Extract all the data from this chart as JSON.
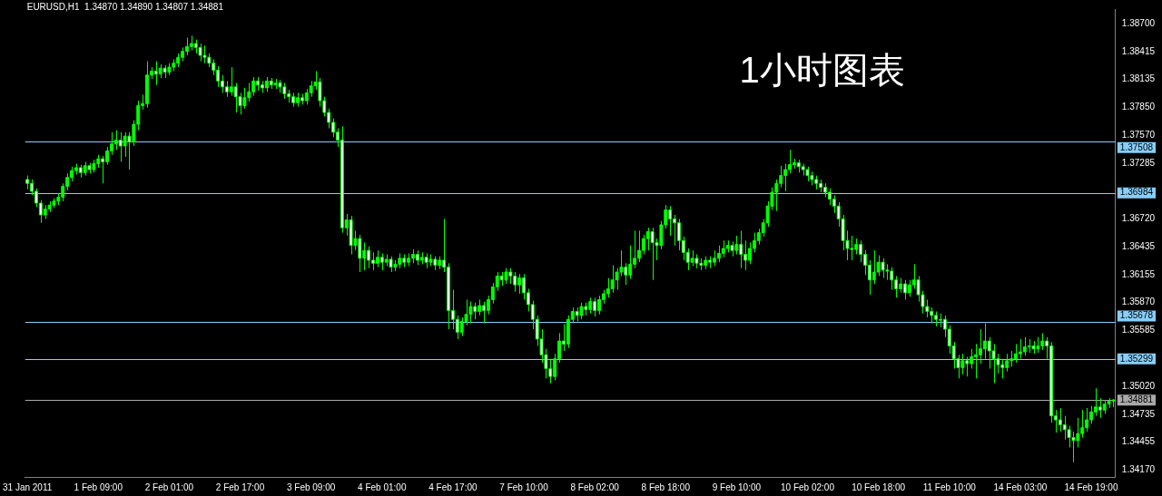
{
  "chart_data": {
    "type": "candlestick",
    "title": "EURUSD,H1  1.34870 1.34890 1.34807 1.34881",
    "annotations": [
      "1小时图表"
    ],
    "color": "#00ff00",
    "colors": [
      "#ffffff",
      "#ffffff",
      "#ffffff",
      "#ffffff",
      "#00ff00",
      "#00ff00",
      "#00ff00",
      "#00ff00",
      "#00ff00",
      "#00ff00",
      "#00ff00",
      "#00ff00",
      "#ffffff",
      "#00ff00",
      "#ffffff",
      "#00ff00",
      "#00ff00",
      "#ffffff",
      "#00ff00",
      "#00ff00",
      "#00ff00",
      "#ffffff",
      "#00ff00",
      "#ffffff",
      "#00ff00",
      "#00ff00",
      "#00ff00",
      "#00ff00",
      "#00ff00",
      "#ffffff",
      "#00ff00",
      "#ffffff",
      "#00ff00",
      "#00ff00",
      "#00ff00",
      "#00ff00",
      "#00ff00",
      "#00ff00",
      "#ffffff",
      "#ffffff",
      "#ffffff",
      "#ffffff",
      "#ffffff",
      "#ffffff",
      "#ffffff",
      "#ffffff",
      "#00ff00",
      "#ffffff",
      "#ffffff",
      "#00ff00",
      "#00ff00",
      "#00ff00",
      "#ffffff",
      "#ffffff",
      "#00ff00",
      "#ffffff",
      "#00ff00",
      "#ffffff",
      "#ffffff",
      "#ffffff",
      "#ffffff",
      "#00ff00",
      "#ffffff",
      "#00ff00",
      "#00ff00",
      "#00ff00",
      "#ffffff",
      "#ffffff",
      "#ffffff",
      "#ffffff",
      "#ffffff",
      "#ffffff",
      "#00ff00",
      "#ffffff",
      "#00ff00",
      "#ffffff",
      "#00ff00",
      "#ffffff",
      "#ffffff",
      "#00ff00",
      "#ffffff",
      "#00ff00",
      "#ffffff",
      "#00ff00",
      "#00ff00",
      "#ffffff",
      "#00ff00",
      "#00ff00",
      "#ffffff",
      "#00ff00",
      "#ffffff",
      "#00ff00",
      "#ffffff",
      "#00ff00",
      "#ffffff",
      "#ffffff",
      "#ffffff",
      "#ffffff",
      "#00ff00",
      "#00ff00",
      "#00ff00",
      "#ffffff",
      "#00ff00",
      "#ffffff",
      "#00ff00",
      "#00ff00",
      "#00ff00",
      "#ffffff",
      "#00ff00",
      "#ffffff",
      "#ffffff",
      "#00ff00",
      "#ffffff",
      "#ffffff",
      "#ffffff",
      "#ffffff",
      "#ffffff",
      "#ffffff",
      "#ffffff",
      "#00ff00",
      "#00ff00",
      "#ffffff",
      "#00ff00",
      "#00ff00",
      "#ffffff",
      "#00ff00",
      "#ffffff",
      "#00ff00",
      "#ffffff",
      "#00ff00",
      "#00ff00",
      "#00ff00",
      "#00ff00",
      "#00ff00",
      "#00ff00",
      "#ffffff",
      "#00ff00",
      "#00ff00",
      "#00ff00",
      "#00ff00",
      "#00ff00",
      "#ffffff",
      "#ffffff",
      "#00ff00",
      "#00ff00",
      "#ffffff",
      "#ffffff",
      "#ffffff",
      "#ffffff",
      "#ffffff",
      "#00ff00",
      "#ffffff",
      "#ffffff",
      "#00ff00",
      "#ffffff",
      "#00ff00",
      "#00ff00",
      "#00ff00",
      "#00ff00",
      "#ffffff",
      "#00ff00",
      "#ffffff",
      "#ffffff",
      "#00ff00",
      "#00ff00",
      "#00ff00",
      "#00ff00",
      "#00ff00",
      "#00ff00",
      "#00ff00",
      "#00ff00",
      "#00ff00",
      "#00ff00",
      "#00ff00",
      "#ffffff",
      "#ffffff",
      "#ffffff",
      "#ffffff",
      "#ffffff",
      "#ffffff",
      "#ffffff",
      "#ffffff",
      "#ffffff",
      "#ffffff",
      "#ffffff",
      "#ffffff",
      "#ffffff",
      "#00ff00",
      "#ffffff",
      "#ffffff",
      "#ffffff",
      "#00ff00",
      "#00ff00",
      "#ffffff",
      "#ffffff",
      "#ffffff",
      "#ffffff",
      "#00ff00",
      "#ffffff",
      "#00ff00",
      "#00ff00",
      "#ffffff",
      "#ffffff",
      "#ffffff",
      "#ffffff",
      "#ffffff",
      "#00ff00",
      "#ffffff",
      "#ffffff",
      "#ffffff",
      "#ffffff",
      "#00ff00",
      "#ffffff",
      "#00ff00",
      "#00ff00",
      "#00ff00",
      "#00ff00",
      "#ffffff",
      "#ffffff",
      "#ffffff",
      "#ffffff",
      "#00ff00",
      "#00ff00",
      "#00ff00",
      "#00ff00",
      "#00ff00",
      "#00ff00",
      "#ffffff",
      "#00ff00",
      "#00ff00",
      "#ffffff",
      "#ffffff",
      "#ffffff",
      "#ffffff",
      "#ffffff",
      "#ffffff",
      "#ffffff",
      "#00ff00",
      "#00ff00",
      "#00ff00",
      "#00ff00",
      "#00ff00",
      "#ffffff",
      "#00ff00",
      "#00ff00",
      "#00ff00"
    ],
    "categories": [
      "31 Jan 2011",
      null,
      null,
      null,
      null,
      null,
      null,
      null,
      null,
      null,
      null,
      null,
      null,
      null,
      null,
      null,
      "1 Feb 09:00",
      null,
      null,
      null,
      null,
      null,
      null,
      null,
      null,
      null,
      null,
      null,
      null,
      null,
      null,
      null,
      "2 Feb 01:00",
      null,
      null,
      null,
      null,
      null,
      null,
      null,
      null,
      null,
      null,
      null,
      null,
      null,
      null,
      null,
      "2 Feb 17:00",
      null,
      null,
      null,
      null,
      null,
      null,
      null,
      null,
      null,
      null,
      null,
      null,
      null,
      null,
      null,
      "3 Feb 09:00",
      null,
      null,
      null,
      null,
      null,
      null,
      null,
      null,
      null,
      null,
      null,
      null,
      null,
      null,
      null,
      "4 Feb 01:00",
      null,
      null,
      null,
      null,
      null,
      null,
      null,
      null,
      null,
      null,
      null,
      null,
      null,
      null,
      null,
      "4 Feb 17:00",
      null,
      null,
      null,
      null,
      null,
      null,
      null,
      null,
      null,
      null,
      null,
      null,
      null,
      null,
      null,
      "7 Feb 10:00",
      null,
      null,
      null,
      null,
      null,
      null,
      null,
      null,
      null,
      null,
      null,
      null,
      null,
      null,
      null,
      "8 Feb 02:00",
      null,
      null,
      null,
      null,
      null,
      null,
      null,
      null,
      null,
      null,
      null,
      null,
      null,
      null,
      null,
      "8 Feb 18:00",
      null,
      null,
      null,
      null,
      null,
      null,
      null,
      null,
      null,
      null,
      null,
      null,
      null,
      null,
      null,
      "9 Feb 10:00",
      null,
      null,
      null,
      null,
      null,
      null,
      null,
      null,
      null,
      null,
      null,
      null,
      null,
      null,
      null,
      "10 Feb 02:00",
      null,
      null,
      null,
      null,
      null,
      null,
      null,
      null,
      null,
      null,
      null,
      null,
      null,
      null,
      null,
      "10 Feb 18:00",
      null,
      null,
      null,
      null,
      null,
      null,
      null,
      null,
      null,
      null,
      null,
      null,
      null,
      null,
      null,
      "11 Feb 10:00",
      null,
      null,
      null,
      null,
      null,
      null,
      null,
      null,
      null,
      null,
      null,
      null,
      null,
      null,
      null,
      "14 Feb 03:00",
      null,
      null,
      null,
      null,
      null,
      null,
      null,
      null,
      null,
      null,
      null,
      null,
      null,
      null,
      null,
      "14 Feb 19:00",
      null,
      null,
      null,
      null,
      null
    ],
    "ohlc": [
      [
        1.3712,
        1.3716,
        1.3702,
        1.3708
      ],
      [
        1.3708,
        1.3712,
        1.3696,
        1.37
      ],
      [
        1.37,
        1.3703,
        1.3684,
        1.3688
      ],
      [
        1.3688,
        1.3691,
        1.3668,
        1.3676
      ],
      [
        1.3676,
        1.3686,
        1.3672,
        1.3682
      ],
      [
        1.3682,
        1.369,
        1.3679,
        1.3686
      ],
      [
        1.3686,
        1.3693,
        1.3683,
        1.369
      ],
      [
        1.369,
        1.3698,
        1.3686,
        1.3694
      ],
      [
        1.3694,
        1.3708,
        1.369,
        1.3705
      ],
      [
        1.3705,
        1.3718,
        1.3701,
        1.3714
      ],
      [
        1.3714,
        1.3725,
        1.371,
        1.3721
      ],
      [
        1.3721,
        1.3728,
        1.3717,
        1.3724
      ],
      [
        1.3724,
        1.3727,
        1.3714,
        1.3719
      ],
      [
        1.3719,
        1.373,
        1.3716,
        1.3726
      ],
      [
        1.3726,
        1.3729,
        1.3718,
        1.3722
      ],
      [
        1.3722,
        1.3732,
        1.3719,
        1.3728
      ],
      [
        1.3728,
        1.3737,
        1.3724,
        1.3733
      ],
      [
        1.3733,
        1.3736,
        1.3708,
        1.373
      ],
      [
        1.373,
        1.3745,
        1.3727,
        1.3741
      ],
      [
        1.3741,
        1.376,
        1.3737,
        1.3748
      ],
      [
        1.3748,
        1.3762,
        1.3742,
        1.3752
      ],
      [
        1.3752,
        1.376,
        1.373,
        1.3746
      ],
      [
        1.3746,
        1.376,
        1.3735,
        1.3756
      ],
      [
        1.3756,
        1.376,
        1.3722,
        1.375
      ],
      [
        1.375,
        1.3772,
        1.3746,
        1.3768
      ],
      [
        1.3768,
        1.3792,
        1.3762,
        1.3787
      ],
      [
        1.3787,
        1.3798,
        1.3783,
        1.3789
      ],
      [
        1.3789,
        1.3832,
        1.3785,
        1.3818
      ],
      [
        1.3818,
        1.3826,
        1.3814,
        1.3822
      ],
      [
        1.3822,
        1.3832,
        1.3808,
        1.3819
      ],
      [
        1.3819,
        1.3829,
        1.3815,
        1.3825
      ],
      [
        1.3825,
        1.3828,
        1.3815,
        1.3821
      ],
      [
        1.3821,
        1.383,
        1.3818,
        1.3826
      ],
      [
        1.3826,
        1.3834,
        1.3822,
        1.383
      ],
      [
        1.383,
        1.384,
        1.3826,
        1.3836
      ],
      [
        1.3836,
        1.3846,
        1.3832,
        1.3842
      ],
      [
        1.3842,
        1.3856,
        1.3838,
        1.3847
      ],
      [
        1.3847,
        1.3858,
        1.3843,
        1.385
      ],
      [
        1.385,
        1.3854,
        1.384,
        1.3846
      ],
      [
        1.3846,
        1.385,
        1.3832,
        1.3838
      ],
      [
        1.3838,
        1.3848,
        1.383,
        1.3836
      ],
      [
        1.3836,
        1.384,
        1.3826,
        1.383
      ],
      [
        1.383,
        1.3834,
        1.3818,
        1.3823
      ],
      [
        1.3823,
        1.3827,
        1.3806,
        1.3812
      ],
      [
        1.3812,
        1.3818,
        1.38,
        1.3806
      ],
      [
        1.3806,
        1.3812,
        1.3796,
        1.3801
      ],
      [
        1.3801,
        1.3826,
        1.3797,
        1.3806
      ],
      [
        1.3806,
        1.381,
        1.378,
        1.3796
      ],
      [
        1.3796,
        1.38,
        1.3778,
        1.3787
      ],
      [
        1.3787,
        1.3805,
        1.3784,
        1.3795
      ],
      [
        1.3795,
        1.381,
        1.3791,
        1.3801
      ],
      [
        1.3801,
        1.3816,
        1.3797,
        1.3812
      ],
      [
        1.3812,
        1.3816,
        1.3802,
        1.3808
      ],
      [
        1.3808,
        1.3812,
        1.38,
        1.3805
      ],
      [
        1.3805,
        1.3816,
        1.3801,
        1.3812
      ],
      [
        1.3812,
        1.3815,
        1.3804,
        1.3808
      ],
      [
        1.3808,
        1.3814,
        1.3804,
        1.381
      ],
      [
        1.381,
        1.3813,
        1.38,
        1.3806
      ],
      [
        1.3806,
        1.381,
        1.3794,
        1.3799
      ],
      [
        1.3799,
        1.3803,
        1.379,
        1.3796
      ],
      [
        1.3796,
        1.38,
        1.3786,
        1.379
      ],
      [
        1.379,
        1.38,
        1.3786,
        1.3795
      ],
      [
        1.3795,
        1.3799,
        1.3788,
        1.3792
      ],
      [
        1.3792,
        1.3804,
        1.3788,
        1.38
      ],
      [
        1.38,
        1.3812,
        1.3796,
        1.3807
      ],
      [
        1.3807,
        1.3822,
        1.3803,
        1.3811
      ],
      [
        1.3811,
        1.3815,
        1.3786,
        1.3792
      ],
      [
        1.3792,
        1.3796,
        1.3776,
        1.378
      ],
      [
        1.378,
        1.3784,
        1.3764,
        1.377
      ],
      [
        1.377,
        1.3774,
        1.3755,
        1.376
      ],
      [
        1.376,
        1.3764,
        1.3745,
        1.3752
      ],
      [
        1.3752,
        1.3766,
        1.3658,
        1.3663
      ],
      [
        1.3663,
        1.3677,
        1.3655,
        1.3671
      ],
      [
        1.3671,
        1.3675,
        1.3636,
        1.3645
      ],
      [
        1.3645,
        1.366,
        1.364,
        1.3652
      ],
      [
        1.3652,
        1.3656,
        1.3618,
        1.3632
      ],
      [
        1.3632,
        1.3648,
        1.362,
        1.364
      ],
      [
        1.364,
        1.3644,
        1.3622,
        1.363
      ],
      [
        1.363,
        1.3638,
        1.362,
        1.3627
      ],
      [
        1.3627,
        1.364,
        1.3623,
        1.3633
      ],
      [
        1.3633,
        1.3637,
        1.362,
        1.3628
      ],
      [
        1.3628,
        1.3636,
        1.3624,
        1.3631
      ],
      [
        1.3631,
        1.3634,
        1.3618,
        1.3623
      ],
      [
        1.3623,
        1.363,
        1.3619,
        1.3626
      ],
      [
        1.3626,
        1.3637,
        1.3622,
        1.3632
      ],
      [
        1.3632,
        1.3636,
        1.3623,
        1.3628
      ],
      [
        1.3628,
        1.3637,
        1.3624,
        1.3632
      ],
      [
        1.3632,
        1.3641,
        1.3627,
        1.3636
      ],
      [
        1.3636,
        1.364,
        1.3625,
        1.363
      ],
      [
        1.363,
        1.3638,
        1.3626,
        1.3633
      ],
      [
        1.3633,
        1.3637,
        1.3622,
        1.3628
      ],
      [
        1.3628,
        1.3636,
        1.3624,
        1.3631
      ],
      [
        1.3631,
        1.3634,
        1.362,
        1.3625
      ],
      [
        1.3625,
        1.3634,
        1.3621,
        1.363
      ],
      [
        1.363,
        1.3672,
        1.3618,
        1.3623
      ],
      [
        1.3623,
        1.3627,
        1.356,
        1.3579
      ],
      [
        1.3579,
        1.36,
        1.356,
        1.357
      ],
      [
        1.357,
        1.3574,
        1.355,
        1.3557
      ],
      [
        1.3557,
        1.3572,
        1.3553,
        1.3568
      ],
      [
        1.3568,
        1.359,
        1.3564,
        1.3575
      ],
      [
        1.3575,
        1.3588,
        1.3566,
        1.3583
      ],
      [
        1.3583,
        1.3587,
        1.357,
        1.3578
      ],
      [
        1.3578,
        1.359,
        1.3574,
        1.3584
      ],
      [
        1.3584,
        1.3588,
        1.3566,
        1.3579
      ],
      [
        1.3579,
        1.3594,
        1.3575,
        1.359
      ],
      [
        1.359,
        1.3607,
        1.3586,
        1.3603
      ],
      [
        1.3603,
        1.3618,
        1.3599,
        1.3614
      ],
      [
        1.3614,
        1.3618,
        1.3604,
        1.361
      ],
      [
        1.361,
        1.3622,
        1.3606,
        1.3618
      ],
      [
        1.3618,
        1.3622,
        1.3606,
        1.3614
      ],
      [
        1.3614,
        1.3618,
        1.3598,
        1.3605
      ],
      [
        1.3605,
        1.3616,
        1.3596,
        1.3612
      ],
      [
        1.3612,
        1.3616,
        1.359,
        1.3597
      ],
      [
        1.3597,
        1.3601,
        1.3578,
        1.3585
      ],
      [
        1.3585,
        1.3589,
        1.356,
        1.357
      ],
      [
        1.357,
        1.3574,
        1.3543,
        1.355
      ],
      [
        1.355,
        1.356,
        1.3526,
        1.3534
      ],
      [
        1.3534,
        1.354,
        1.351,
        1.352
      ],
      [
        1.352,
        1.353,
        1.3505,
        1.3512
      ],
      [
        1.3512,
        1.3535,
        1.3508,
        1.353
      ],
      [
        1.353,
        1.3556,
        1.3526,
        1.3548
      ],
      [
        1.3548,
        1.3565,
        1.3538,
        1.3545
      ],
      [
        1.3545,
        1.3574,
        1.3541,
        1.357
      ],
      [
        1.357,
        1.3582,
        1.3566,
        1.3578
      ],
      [
        1.3578,
        1.3582,
        1.3568,
        1.3574
      ],
      [
        1.3574,
        1.3587,
        1.357,
        1.3583
      ],
      [
        1.3583,
        1.3587,
        1.3574,
        1.358
      ],
      [
        1.358,
        1.3592,
        1.3576,
        1.3588
      ],
      [
        1.3588,
        1.3592,
        1.3573,
        1.3579
      ],
      [
        1.3579,
        1.3594,
        1.3575,
        1.359
      ],
      [
        1.359,
        1.36,
        1.3586,
        1.3596
      ],
      [
        1.3596,
        1.3612,
        1.3592,
        1.3601
      ],
      [
        1.3601,
        1.3625,
        1.3597,
        1.361
      ],
      [
        1.361,
        1.3622,
        1.36,
        1.3618
      ],
      [
        1.3618,
        1.364,
        1.3614,
        1.3623
      ],
      [
        1.3623,
        1.3627,
        1.3605,
        1.3615
      ],
      [
        1.3615,
        1.3645,
        1.3611,
        1.3626
      ],
      [
        1.3626,
        1.366,
        1.3622,
        1.3632
      ],
      [
        1.3632,
        1.366,
        1.3628,
        1.364
      ],
      [
        1.364,
        1.3656,
        1.3636,
        1.3652
      ],
      [
        1.3652,
        1.3663,
        1.364,
        1.3659
      ],
      [
        1.3659,
        1.3663,
        1.361,
        1.3648
      ],
      [
        1.3648,
        1.3652,
        1.363,
        1.3645
      ],
      [
        1.3645,
        1.367,
        1.3641,
        1.3666
      ],
      [
        1.3666,
        1.3686,
        1.3662,
        1.3681
      ],
      [
        1.3681,
        1.3685,
        1.3655,
        1.3672
      ],
      [
        1.3672,
        1.3676,
        1.3645,
        1.3668
      ],
      [
        1.3668,
        1.3672,
        1.364,
        1.365
      ],
      [
        1.365,
        1.3654,
        1.363,
        1.3638
      ],
      [
        1.3638,
        1.3642,
        1.362,
        1.3628
      ],
      [
        1.3628,
        1.364,
        1.3624,
        1.3632
      ],
      [
        1.3632,
        1.3636,
        1.3622,
        1.3627
      ],
      [
        1.3627,
        1.3632,
        1.362,
        1.3625
      ],
      [
        1.3625,
        1.3634,
        1.3621,
        1.363
      ],
      [
        1.363,
        1.3634,
        1.3622,
        1.3628
      ],
      [
        1.3628,
        1.364,
        1.3624,
        1.3632
      ],
      [
        1.3632,
        1.3645,
        1.3628,
        1.3637
      ],
      [
        1.3637,
        1.365,
        1.3633,
        1.3642
      ],
      [
        1.3642,
        1.365,
        1.3638,
        1.3645
      ],
      [
        1.3645,
        1.3649,
        1.3634,
        1.364
      ],
      [
        1.364,
        1.3655,
        1.3636,
        1.3646
      ],
      [
        1.3646,
        1.366,
        1.3622,
        1.3636
      ],
      [
        1.3636,
        1.365,
        1.362,
        1.363
      ],
      [
        1.363,
        1.3648,
        1.3626,
        1.3642
      ],
      [
        1.3642,
        1.3658,
        1.3638,
        1.365
      ],
      [
        1.365,
        1.3662,
        1.3646,
        1.3658
      ],
      [
        1.3658,
        1.3672,
        1.3654,
        1.3668
      ],
      [
        1.3668,
        1.369,
        1.3664,
        1.3685
      ],
      [
        1.3685,
        1.3704,
        1.3681,
        1.3699
      ],
      [
        1.3699,
        1.3712,
        1.368,
        1.3708
      ],
      [
        1.3708,
        1.3726,
        1.3704,
        1.3716
      ],
      [
        1.3716,
        1.3728,
        1.37,
        1.3722
      ],
      [
        1.3722,
        1.3742,
        1.3718,
        1.3727
      ],
      [
        1.3727,
        1.3733,
        1.3723,
        1.3729
      ],
      [
        1.3729,
        1.3732,
        1.3719,
        1.3725
      ],
      [
        1.3725,
        1.3728,
        1.3716,
        1.3722
      ],
      [
        1.3722,
        1.3725,
        1.371,
        1.3716
      ],
      [
        1.3716,
        1.372,
        1.3706,
        1.3712
      ],
      [
        1.3712,
        1.3716,
        1.3702,
        1.3708
      ],
      [
        1.3708,
        1.3712,
        1.3699,
        1.3704
      ],
      [
        1.3704,
        1.3708,
        1.3694,
        1.3699
      ],
      [
        1.3699,
        1.3703,
        1.3686,
        1.3692
      ],
      [
        1.3692,
        1.3696,
        1.3678,
        1.3685
      ],
      [
        1.3685,
        1.3689,
        1.3664,
        1.3672
      ],
      [
        1.3672,
        1.3676,
        1.364,
        1.365
      ],
      [
        1.365,
        1.366,
        1.363,
        1.3642
      ],
      [
        1.3642,
        1.3655,
        1.363,
        1.3641
      ],
      [
        1.3641,
        1.3652,
        1.3636,
        1.3646
      ],
      [
        1.3646,
        1.365,
        1.3628,
        1.3636
      ],
      [
        1.3636,
        1.364,
        1.3615,
        1.3625
      ],
      [
        1.3625,
        1.363,
        1.3595,
        1.361
      ],
      [
        1.361,
        1.364,
        1.3606,
        1.3618
      ],
      [
        1.3618,
        1.3635,
        1.3614,
        1.3628
      ],
      [
        1.3628,
        1.3632,
        1.3612,
        1.362
      ],
      [
        1.362,
        1.3626,
        1.361,
        1.3619
      ],
      [
        1.3619,
        1.3623,
        1.36,
        1.361
      ],
      [
        1.361,
        1.3614,
        1.3592,
        1.3601
      ],
      [
        1.3601,
        1.3612,
        1.3597,
        1.3606
      ],
      [
        1.3606,
        1.361,
        1.359,
        1.3597
      ],
      [
        1.3597,
        1.361,
        1.3593,
        1.3605
      ],
      [
        1.3605,
        1.3626,
        1.3601,
        1.361
      ],
      [
        1.361,
        1.3614,
        1.3588,
        1.3595
      ],
      [
        1.3595,
        1.3599,
        1.3576,
        1.3583
      ],
      [
        1.3583,
        1.359,
        1.3572,
        1.3578
      ],
      [
        1.3578,
        1.3582,
        1.3566,
        1.3574
      ],
      [
        1.3574,
        1.3578,
        1.3563,
        1.357
      ],
      [
        1.357,
        1.3576,
        1.3562,
        1.357
      ],
      [
        1.357,
        1.3574,
        1.3552,
        1.356
      ],
      [
        1.356,
        1.3564,
        1.3535,
        1.3543
      ],
      [
        1.3543,
        1.3547,
        1.352,
        1.353
      ],
      [
        1.353,
        1.3534,
        1.351,
        1.3521
      ],
      [
        1.3521,
        1.3535,
        1.3514,
        1.3528
      ],
      [
        1.3528,
        1.3532,
        1.3512,
        1.3525
      ],
      [
        1.3525,
        1.354,
        1.352,
        1.3532
      ],
      [
        1.3532,
        1.3545,
        1.351,
        1.3534
      ],
      [
        1.3534,
        1.356,
        1.3525,
        1.354
      ],
      [
        1.354,
        1.3566,
        1.353,
        1.3548
      ],
      [
        1.3548,
        1.3552,
        1.352,
        1.3538
      ],
      [
        1.3538,
        1.3545,
        1.3505,
        1.353
      ],
      [
        1.353,
        1.3535,
        1.3515,
        1.3524
      ],
      [
        1.3524,
        1.353,
        1.351,
        1.3521
      ],
      [
        1.3521,
        1.3535,
        1.3517,
        1.3528
      ],
      [
        1.3528,
        1.3538,
        1.3522,
        1.353
      ],
      [
        1.353,
        1.3545,
        1.3526,
        1.3535
      ],
      [
        1.3535,
        1.355,
        1.353,
        1.3537
      ],
      [
        1.3537,
        1.3552,
        1.3533,
        1.3542
      ],
      [
        1.3542,
        1.355,
        1.3536,
        1.3543
      ],
      [
        1.3543,
        1.3548,
        1.3535,
        1.354
      ],
      [
        1.354,
        1.3552,
        1.3536,
        1.3543
      ],
      [
        1.3543,
        1.3556,
        1.3539,
        1.3548
      ],
      [
        1.3548,
        1.3552,
        1.353,
        1.3543
      ],
      [
        1.3543,
        1.3547,
        1.3465,
        1.3472
      ],
      [
        1.3472,
        1.3478,
        1.3455,
        1.3468
      ],
      [
        1.3468,
        1.348,
        1.3456,
        1.3463
      ],
      [
        1.3463,
        1.3472,
        1.3448,
        1.3458
      ],
      [
        1.3458,
        1.3462,
        1.344,
        1.345
      ],
      [
        1.345,
        1.3456,
        1.3425,
        1.3447
      ],
      [
        1.3447,
        1.347,
        1.344,
        1.3454
      ],
      [
        1.3454,
        1.3478,
        1.345,
        1.346
      ],
      [
        1.346,
        1.348,
        1.3456,
        1.3468
      ],
      [
        1.3468,
        1.3482,
        1.3464,
        1.3476
      ],
      [
        1.3476,
        1.35,
        1.3472,
        1.3481
      ],
      [
        1.3481,
        1.349,
        1.347,
        1.3478
      ],
      [
        1.3478,
        1.3488,
        1.3474,
        1.3484
      ],
      [
        1.3484,
        1.349,
        1.348,
        1.3487
      ],
      [
        1.3487,
        1.3489,
        1.34807,
        1.34881
      ]
    ],
    "ylim": [
      1.341,
      1.3885
    ],
    "yticks": [
      {
        "value": 1.3417,
        "label": "1.34170"
      },
      {
        "value": 1.34455,
        "label": "1.34455"
      },
      {
        "value": 1.34735,
        "label": "1.34735"
      },
      {
        "value": 1.3502,
        "label": "1.35020"
      },
      {
        "value": 1.35585,
        "label": "1.35585"
      },
      {
        "value": 1.3587,
        "label": "1.35870"
      },
      {
        "value": 1.36155,
        "label": "1.36155"
      },
      {
        "value": 1.36435,
        "label": "1.36435"
      },
      {
        "value": 1.3672,
        "label": "1.36720"
      },
      {
        "value": 1.37285,
        "label": "1.37285"
      },
      {
        "value": 1.3757,
        "label": "1.37570"
      },
      {
        "value": 1.3785,
        "label": "1.37850"
      },
      {
        "value": 1.38135,
        "label": "1.38135"
      },
      {
        "value": 1.38415,
        "label": "1.38415"
      },
      {
        "value": 1.387,
        "label": "1.38700"
      }
    ],
    "ref_lines": [
      {
        "axis": "y",
        "value": 1.37508,
        "label": "1.37508",
        "color": "#87cefa"
      },
      {
        "axis": "y",
        "value": 1.36984,
        "label": "1.36984",
        "color": "#87cefa"
      },
      {
        "axis": "y",
        "value": 1.35678,
        "label": "1.35678",
        "color": "#87cefa"
      },
      {
        "axis": "y",
        "value": 1.35299,
        "label": "1.35299",
        "color": "#87cefa"
      },
      {
        "axis": "y",
        "value": 1.34881,
        "label": "1.34881",
        "color": "#a9a9a9"
      }
    ]
  }
}
